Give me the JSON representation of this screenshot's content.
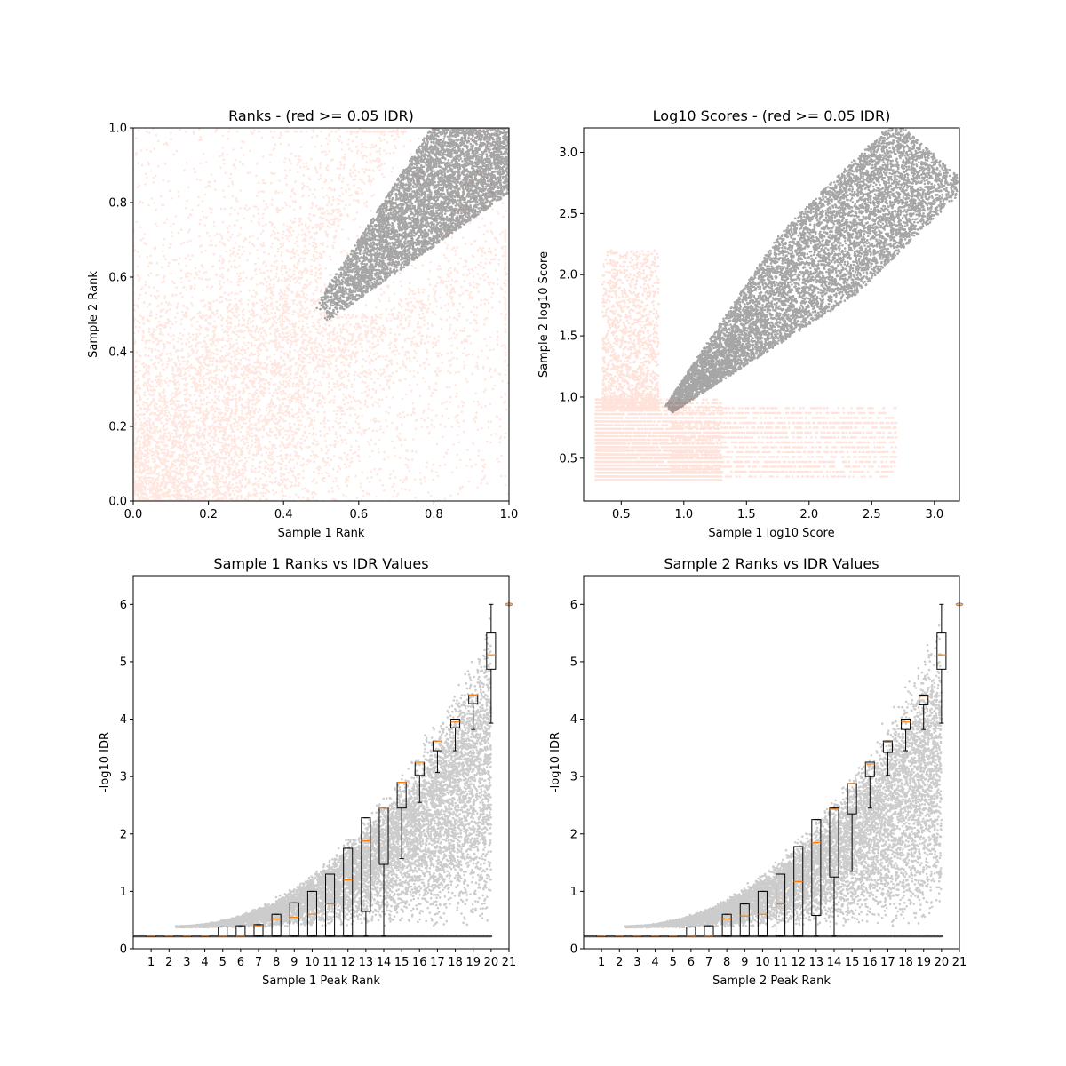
{
  "chart_data": [
    {
      "type": "scatter",
      "title": "Ranks - (red >= 0.05 IDR)",
      "xlabel": "Sample 1 Rank",
      "ylabel": "Sample 2 Rank",
      "xlim": [
        0.0,
        1.0
      ],
      "ylim": [
        0.0,
        1.0
      ],
      "xticks": [
        "0.0",
        "0.2",
        "0.4",
        "0.6",
        "0.8",
        "1.0"
      ],
      "yticks": [
        "0.0",
        "0.2",
        "0.4",
        "0.6",
        "0.8",
        "1.0"
      ],
      "grid": false,
      "series": [
        {
          "color": "#ff9070",
          "description_values": [
            [
              0.1,
              0.1
            ],
            [
              0.3,
              0.3
            ],
            [
              0.5,
              0.2
            ],
            [
              0.2,
              0.5
            ],
            [
              0.6,
              0.4
            ],
            [
              0.4,
              0.6
            ],
            [
              0.05,
              0.65
            ],
            [
              0.7,
              0.1
            ],
            [
              0.9,
              0.05
            ],
            [
              0.45,
              0.9
            ]
          ]
        },
        {
          "color": "#000000",
          "description_values": [
            [
              0.5,
              0.5
            ],
            [
              0.6,
              0.62
            ],
            [
              0.7,
              0.72
            ],
            [
              0.8,
              0.8
            ],
            [
              0.9,
              0.9
            ],
            [
              0.95,
              0.95
            ],
            [
              1.0,
              1.0
            ],
            [
              0.65,
              0.75
            ],
            [
              0.75,
              0.68
            ]
          ]
        }
      ]
    },
    {
      "type": "scatter",
      "title": "Log10 Scores - (red >= 0.05 IDR)",
      "xlabel": "Sample 1 log10 Score",
      "ylabel": "Sample 2 log10 Score",
      "xlim": [
        0.2,
        3.2
      ],
      "ylim": [
        0.15,
        3.2
      ],
      "xticks": [
        "0.5",
        "1.0",
        "1.5",
        "2.0",
        "2.5",
        "3.0"
      ],
      "yticks": [
        "0.5",
        "1.0",
        "1.5",
        "2.0",
        "2.5",
        "3.0"
      ],
      "grid": false,
      "series": [
        {
          "color": "#ff9070",
          "description_values": [
            [
              0.3,
              0.35
            ],
            [
              0.5,
              0.6
            ],
            [
              0.8,
              0.9
            ],
            [
              1.2,
              0.5
            ],
            [
              2.0,
              0.6
            ],
            [
              2.7,
              0.4
            ],
            [
              0.4,
              2.1
            ],
            [
              0.6,
              1.3
            ]
          ]
        },
        {
          "color": "#000000",
          "description_values": [
            [
              0.88,
              0.9
            ],
            [
              1.2,
              1.2
            ],
            [
              1.5,
              1.5
            ],
            [
              2.0,
              2.0
            ],
            [
              2.5,
              2.5
            ],
            [
              2.9,
              2.85
            ],
            [
              3.05,
              3.05
            ]
          ]
        }
      ]
    },
    {
      "type": "scatter",
      "title": "Sample 1 Ranks vs IDR Values",
      "xlabel": "Sample 1 Peak Rank",
      "ylabel": "-log10 IDR",
      "xlim": [
        0,
        21
      ],
      "ylim": [
        0,
        6.5
      ],
      "xticks": [
        "1",
        "2",
        "3",
        "4",
        "5",
        "6",
        "7",
        "8",
        "9",
        "10",
        "11",
        "12",
        "13",
        "14",
        "15",
        "16",
        "17",
        "18",
        "19",
        "20",
        "21"
      ],
      "yticks": [
        "0",
        "1",
        "2",
        "3",
        "4",
        "5",
        "6"
      ],
      "grid": false,
      "boxes": [
        {
          "pos": 1,
          "q1": 0.22,
          "med": 0.22,
          "q3": 0.22,
          "lo": 0.22,
          "hi": 0.22
        },
        {
          "pos": 2,
          "q1": 0.22,
          "med": 0.22,
          "q3": 0.22,
          "lo": 0.22,
          "hi": 0.22
        },
        {
          "pos": 3,
          "q1": 0.22,
          "med": 0.22,
          "q3": 0.22,
          "lo": 0.22,
          "hi": 0.22
        },
        {
          "pos": 4,
          "q1": 0.22,
          "med": 0.22,
          "q3": 0.22,
          "lo": 0.22,
          "hi": 0.22
        },
        {
          "pos": 5,
          "q1": 0.22,
          "med": 0.22,
          "q3": 0.38,
          "lo": 0.22,
          "hi": 0.38
        },
        {
          "pos": 6,
          "q1": 0.22,
          "med": 0.22,
          "q3": 0.4,
          "lo": 0.22,
          "hi": 0.4
        },
        {
          "pos": 7,
          "q1": 0.22,
          "med": 0.4,
          "q3": 0.42,
          "lo": 0.22,
          "hi": 0.42
        },
        {
          "pos": 8,
          "q1": 0.22,
          "med": 0.52,
          "q3": 0.6,
          "lo": 0.22,
          "hi": 0.6
        },
        {
          "pos": 9,
          "q1": 0.22,
          "med": 0.55,
          "q3": 0.8,
          "lo": 0.22,
          "hi": 0.8
        },
        {
          "pos": 10,
          "q1": 0.22,
          "med": 0.6,
          "q3": 1.0,
          "lo": 0.22,
          "hi": 1.0
        },
        {
          "pos": 11,
          "q1": 0.22,
          "med": 0.78,
          "q3": 1.3,
          "lo": 0.22,
          "hi": 1.3
        },
        {
          "pos": 12,
          "q1": 0.22,
          "med": 1.2,
          "q3": 1.75,
          "lo": 0.22,
          "hi": 1.75
        },
        {
          "pos": 13,
          "q1": 0.65,
          "med": 1.88,
          "q3": 2.28,
          "lo": 0.22,
          "hi": 2.28
        },
        {
          "pos": 14,
          "q1": 1.47,
          "med": 2.45,
          "q3": 2.45,
          "lo": 0.22,
          "hi": 2.45
        },
        {
          "pos": 15,
          "q1": 2.45,
          "med": 2.9,
          "q3": 2.9,
          "lo": 1.57,
          "hi": 2.9
        },
        {
          "pos": 16,
          "q1": 3.02,
          "med": 3.25,
          "q3": 3.25,
          "lo": 2.55,
          "hi": 3.25
        },
        {
          "pos": 17,
          "q1": 3.45,
          "med": 3.62,
          "q3": 3.62,
          "lo": 3.07,
          "hi": 3.62
        },
        {
          "pos": 18,
          "q1": 3.85,
          "med": 3.95,
          "q3": 4.0,
          "lo": 3.45,
          "hi": 4.0
        },
        {
          "pos": 19,
          "q1": 4.27,
          "med": 4.42,
          "q3": 4.42,
          "lo": 3.82,
          "hi": 4.42
        },
        {
          "pos": 20,
          "q1": 4.87,
          "med": 5.12,
          "q3": 5.5,
          "lo": 3.93,
          "hi": 6.0
        }
      ],
      "flier": {
        "pos": 21,
        "value": 6.0
      }
    },
    {
      "type": "scatter",
      "title": "Sample 2 Ranks vs IDR Values",
      "xlabel": "Sample 2 Peak Rank",
      "ylabel": "-log10 IDR",
      "xlim": [
        0,
        21
      ],
      "ylim": [
        0,
        6.5
      ],
      "xticks": [
        "1",
        "2",
        "3",
        "4",
        "5",
        "6",
        "7",
        "8",
        "9",
        "10",
        "11",
        "12",
        "13",
        "14",
        "15",
        "16",
        "17",
        "18",
        "19",
        "20",
        "21"
      ],
      "yticks": [
        "0",
        "1",
        "2",
        "3",
        "4",
        "5",
        "6"
      ],
      "grid": false,
      "boxes": [
        {
          "pos": 1,
          "q1": 0.22,
          "med": 0.22,
          "q3": 0.22,
          "lo": 0.22,
          "hi": 0.22
        },
        {
          "pos": 2,
          "q1": 0.22,
          "med": 0.22,
          "q3": 0.22,
          "lo": 0.22,
          "hi": 0.22
        },
        {
          "pos": 3,
          "q1": 0.22,
          "med": 0.22,
          "q3": 0.22,
          "lo": 0.22,
          "hi": 0.22
        },
        {
          "pos": 4,
          "q1": 0.22,
          "med": 0.22,
          "q3": 0.22,
          "lo": 0.22,
          "hi": 0.22
        },
        {
          "pos": 5,
          "q1": 0.22,
          "med": 0.22,
          "q3": 0.22,
          "lo": 0.22,
          "hi": 0.22
        },
        {
          "pos": 6,
          "q1": 0.22,
          "med": 0.22,
          "q3": 0.38,
          "lo": 0.22,
          "hi": 0.38
        },
        {
          "pos": 7,
          "q1": 0.22,
          "med": 0.22,
          "q3": 0.4,
          "lo": 0.22,
          "hi": 0.4
        },
        {
          "pos": 8,
          "q1": 0.22,
          "med": 0.52,
          "q3": 0.6,
          "lo": 0.22,
          "hi": 0.6
        },
        {
          "pos": 9,
          "q1": 0.22,
          "med": 0.57,
          "q3": 0.78,
          "lo": 0.22,
          "hi": 0.78
        },
        {
          "pos": 10,
          "q1": 0.22,
          "med": 0.6,
          "q3": 1.0,
          "lo": 0.22,
          "hi": 1.0
        },
        {
          "pos": 11,
          "q1": 0.22,
          "med": 0.78,
          "q3": 1.3,
          "lo": 0.22,
          "hi": 1.3
        },
        {
          "pos": 12,
          "q1": 0.22,
          "med": 1.17,
          "q3": 1.78,
          "lo": 0.22,
          "hi": 1.78
        },
        {
          "pos": 13,
          "q1": 0.58,
          "med": 1.85,
          "q3": 2.25,
          "lo": 0.22,
          "hi": 2.25
        },
        {
          "pos": 14,
          "q1": 1.25,
          "med": 2.43,
          "q3": 2.45,
          "lo": 0.22,
          "hi": 2.45
        },
        {
          "pos": 15,
          "q1": 2.35,
          "med": 2.88,
          "q3": 2.88,
          "lo": 1.35,
          "hi": 2.88
        },
        {
          "pos": 16,
          "q1": 3.0,
          "med": 3.22,
          "q3": 3.25,
          "lo": 2.45,
          "hi": 3.25
        },
        {
          "pos": 17,
          "q1": 3.42,
          "med": 3.6,
          "q3": 3.62,
          "lo": 3.02,
          "hi": 3.62
        },
        {
          "pos": 18,
          "q1": 3.82,
          "med": 3.95,
          "q3": 4.0,
          "lo": 3.45,
          "hi": 4.0
        },
        {
          "pos": 19,
          "q1": 4.25,
          "med": 4.4,
          "q3": 4.42,
          "lo": 3.82,
          "hi": 4.42
        },
        {
          "pos": 20,
          "q1": 4.87,
          "med": 5.12,
          "q3": 5.5,
          "lo": 3.93,
          "hi": 6.0
        }
      ],
      "flier": {
        "pos": 21,
        "value": 6.0
      }
    }
  ]
}
